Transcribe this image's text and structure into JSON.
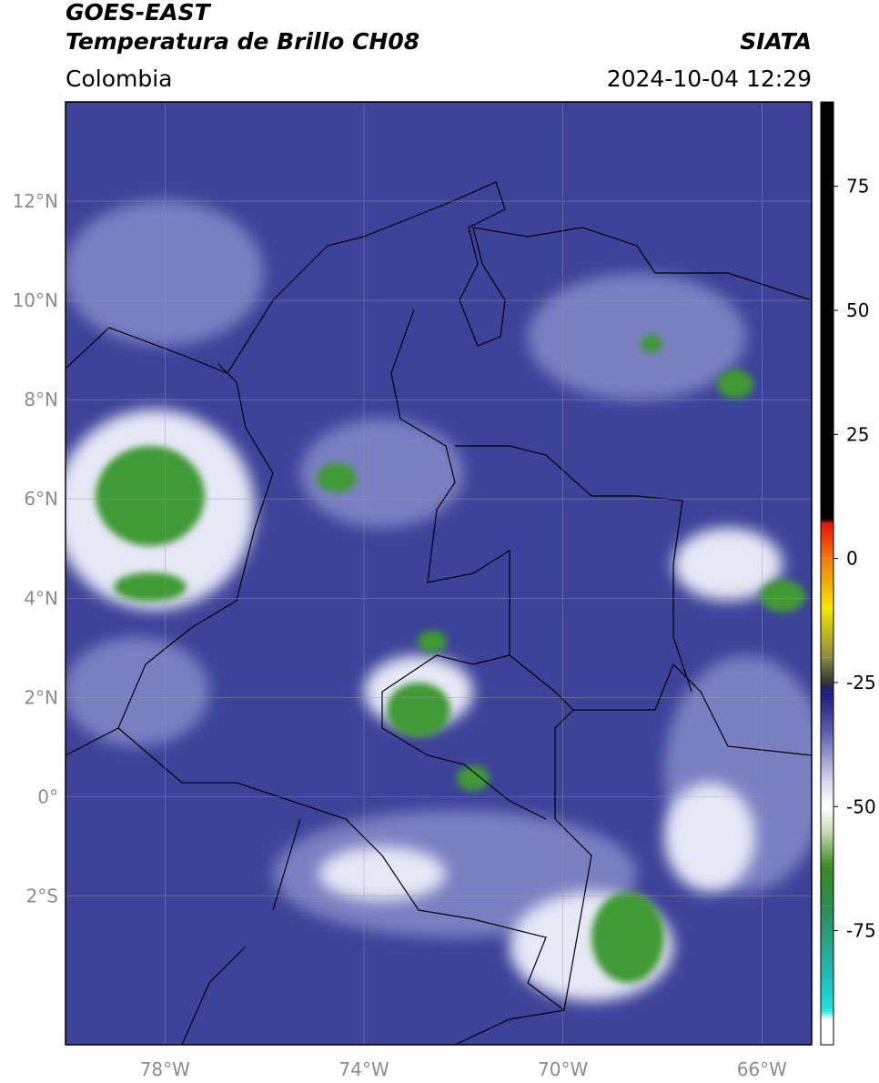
{
  "header": {
    "title": "GOES-EAST",
    "subtitle": "Temperatura de Brillo CH08",
    "source": "SIATA",
    "region": "Colombia",
    "timestamp": "2024-10-04 12:29"
  },
  "map": {
    "lon_range": [
      -80,
      -65
    ],
    "lat_range": [
      -5,
      14
    ],
    "lon_ticks": [
      {
        "value": -78,
        "label": "78°W"
      },
      {
        "value": -74,
        "label": "74°W"
      },
      {
        "value": -70,
        "label": "70°W"
      },
      {
        "value": -66,
        "label": "66°W"
      }
    ],
    "lat_ticks": [
      {
        "value": 12,
        "label": "12°N"
      },
      {
        "value": 10,
        "label": "10°N"
      },
      {
        "value": 8,
        "label": "8°N"
      },
      {
        "value": 6,
        "label": "6°N"
      },
      {
        "value": 4,
        "label": "4°N"
      },
      {
        "value": 2,
        "label": "2°N"
      },
      {
        "value": 0,
        "label": "0°"
      },
      {
        "value": -2,
        "label": "2°S"
      }
    ]
  },
  "colorbar": {
    "range": [
      -98,
      92
    ],
    "ticks": [
      75,
      50,
      25,
      0,
      -25,
      -50,
      -75
    ],
    "stops": [
      {
        "value": 92,
        "color": "#000000"
      },
      {
        "value": 8,
        "color": "#000000"
      },
      {
        "value": 7,
        "color": "#e8130a"
      },
      {
        "value": 0,
        "color": "#f07b10"
      },
      {
        "value": -10,
        "color": "#f5e400"
      },
      {
        "value": -20,
        "color": "#8a8a40"
      },
      {
        "value": -25,
        "color": "#333333"
      },
      {
        "value": -27,
        "color": "#1a1a80"
      },
      {
        "value": -35,
        "color": "#5a60b0"
      },
      {
        "value": -45,
        "color": "#d8d8ee"
      },
      {
        "value": -50,
        "color": "#ffffff"
      },
      {
        "value": -55,
        "color": "#c8dcb8"
      },
      {
        "value": -62,
        "color": "#3a8a20"
      },
      {
        "value": -70,
        "color": "#2e8a50"
      },
      {
        "value": -85,
        "color": "#20c0c0"
      },
      {
        "value": -91,
        "color": "#20e0e0"
      },
      {
        "value": -93,
        "color": "#ffffff"
      },
      {
        "value": -98,
        "color": "#ffffff"
      }
    ]
  }
}
